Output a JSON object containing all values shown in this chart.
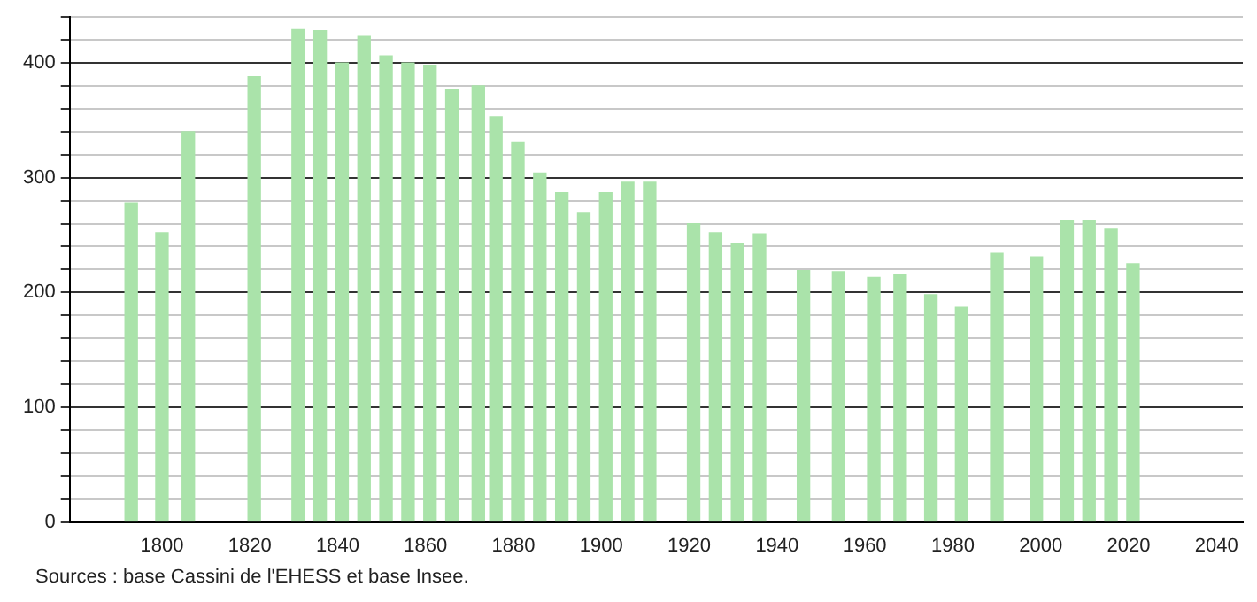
{
  "chart_data": {
    "type": "bar",
    "x": [
      1793,
      1800,
      1806,
      1821,
      1831,
      1836,
      1841,
      1846,
      1851,
      1856,
      1861,
      1866,
      1872,
      1876,
      1881,
      1886,
      1891,
      1896,
      1901,
      1906,
      1911,
      1921,
      1926,
      1931,
      1936,
      1946,
      1954,
      1962,
      1968,
      1975,
      1982,
      1990,
      1999,
      2006,
      2011,
      2016,
      2021
    ],
    "values": [
      278,
      252,
      340,
      388,
      429,
      428,
      400,
      423,
      406,
      400,
      398,
      377,
      380,
      353,
      331,
      304,
      287,
      269,
      287,
      296,
      296,
      260,
      252,
      243,
      251,
      219,
      218,
      213,
      216,
      198,
      187,
      234,
      231,
      263,
      263,
      255,
      225
    ],
    "color": "#aae3aa",
    "xlim": [
      1779,
      2046
    ],
    "xticks": [
      1800,
      1820,
      1840,
      1860,
      1880,
      1900,
      1920,
      1940,
      1960,
      1980,
      2000,
      2020,
      2040
    ],
    "ylim": [
      0,
      440
    ],
    "yticks": [
      0,
      {
        "value": 20,
        "label": null
      },
      {
        "value": 40,
        "label": null
      },
      {
        "value": 60,
        "label": null
      },
      {
        "value": 80,
        "label": null
      },
      100,
      {
        "value": 120,
        "label": null
      },
      {
        "value": 140,
        "label": null
      },
      {
        "value": 160,
        "label": null
      },
      {
        "value": 180,
        "label": null
      },
      200,
      {
        "value": 220,
        "label": null
      },
      {
        "value": 240,
        "label": null
      },
      {
        "value": 260,
        "label": null
      },
      {
        "value": 280,
        "label": null
      },
      300,
      {
        "value": 320,
        "label": null
      },
      {
        "value": 340,
        "label": null
      },
      {
        "value": 360,
        "label": null
      },
      {
        "value": 380,
        "label": null
      },
      400,
      {
        "value": 420,
        "label": null
      },
      {
        "value": 440,
        "label": null
      }
    ],
    "grid": "y",
    "annotations": [
      "Sources : base Cassini de l'EHESS et base Insee."
    ]
  }
}
